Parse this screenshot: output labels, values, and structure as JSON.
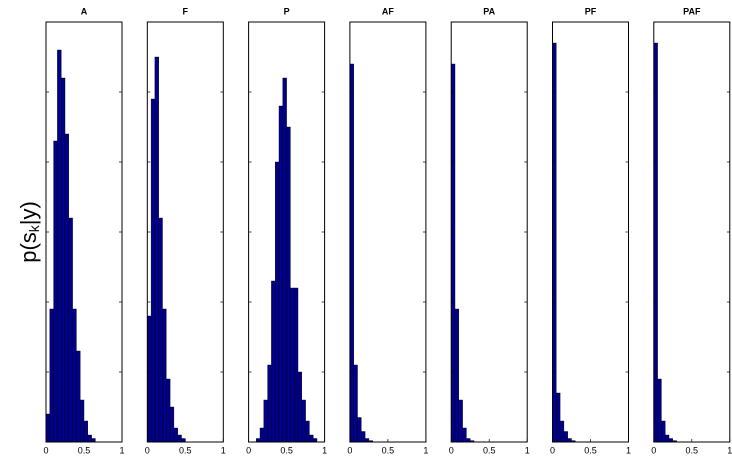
{
  "ylabel_parts": [
    "p(s",
    "k",
    "|y)"
  ],
  "chart_data": [
    {
      "type": "histogram",
      "title": "A",
      "color": "#00008b",
      "bins": [
        0,
        0.05,
        0.1,
        0.15,
        0.2,
        0.25,
        0.3,
        0.35,
        0.4,
        0.45,
        0.5,
        0.55,
        0.6,
        0.65
      ],
      "values": [
        0.4,
        1.9,
        4.3,
        5.6,
        5.2,
        4.4,
        3.2,
        1.9,
        1.3,
        0.6,
        0.3,
        0.1,
        0.05
      ],
      "xlim": [
        0,
        1
      ],
      "xticks": [
        0,
        0.5,
        1
      ],
      "ylim": [
        0,
        6
      ],
      "yticks": [
        1,
        2,
        3,
        4,
        5
      ]
    },
    {
      "type": "histogram",
      "title": "F",
      "color": "#00008b",
      "bins": [
        0,
        0.05,
        0.1,
        0.15,
        0.2,
        0.25,
        0.3,
        0.35,
        0.4,
        0.45,
        0.5
      ],
      "values": [
        1.8,
        4.9,
        5.5,
        3.2,
        1.9,
        0.9,
        0.5,
        0.2,
        0.1,
        0.05
      ],
      "xlim": [
        0,
        1
      ],
      "xticks": [
        0,
        0.5,
        1
      ],
      "ylim": [
        0,
        6
      ],
      "yticks": [
        1,
        2,
        3,
        4,
        5
      ]
    },
    {
      "type": "histogram",
      "title": "P",
      "color": "#00008b",
      "bins": [
        0.1,
        0.15,
        0.2,
        0.25,
        0.3,
        0.35,
        0.4,
        0.45,
        0.5,
        0.55,
        0.6,
        0.65,
        0.7,
        0.75,
        0.8,
        0.85,
        0.9
      ],
      "values": [
        0.05,
        0.2,
        0.6,
        1.1,
        2.3,
        4.0,
        4.8,
        5.2,
        4.5,
        2.2,
        2.2,
        1.0,
        0.6,
        0.3,
        0.1,
        0.05
      ],
      "xlim": [
        0,
        1
      ],
      "xticks": [
        0,
        0.5,
        1
      ],
      "ylim": [
        0,
        6
      ],
      "yticks": [
        1,
        2,
        3,
        4,
        5
      ]
    },
    {
      "type": "histogram",
      "title": "AF",
      "color": "#00008b",
      "bins": [
        0,
        0.05,
        0.1,
        0.15,
        0.2,
        0.25,
        0.3
      ],
      "values": [
        5.4,
        1.1,
        0.35,
        0.15,
        0.05,
        0.02
      ],
      "xlim": [
        0,
        1
      ],
      "xticks": [
        0,
        0.5,
        1
      ],
      "ylim": [
        0,
        6
      ],
      "yticks": [
        1,
        2,
        3,
        4,
        5
      ]
    },
    {
      "type": "histogram",
      "title": "PA",
      "color": "#00008b",
      "bins": [
        0,
        0.05,
        0.1,
        0.15,
        0.2,
        0.25,
        0.3
      ],
      "values": [
        5.4,
        1.9,
        0.6,
        0.2,
        0.05,
        0.02
      ],
      "xlim": [
        0,
        1
      ],
      "xticks": [
        0,
        0.5,
        1
      ],
      "ylim": [
        0,
        6
      ],
      "yticks": [
        1,
        2,
        3,
        4,
        5
      ]
    },
    {
      "type": "histogram",
      "title": "PF",
      "color": "#00008b",
      "bins": [
        0,
        0.05,
        0.1,
        0.15,
        0.2,
        0.25,
        0.3
      ],
      "values": [
        5.7,
        0.7,
        0.3,
        0.15,
        0.05,
        0.02
      ],
      "xlim": [
        0,
        1
      ],
      "xticks": [
        0,
        0.5,
        1
      ],
      "ylim": [
        0,
        6
      ],
      "yticks": [
        1,
        2,
        3,
        4,
        5
      ]
    },
    {
      "type": "histogram",
      "title": "PAF",
      "color": "#00008b",
      "bins": [
        0,
        0.05,
        0.1,
        0.15,
        0.2,
        0.25,
        0.3
      ],
      "values": [
        5.7,
        0.9,
        0.3,
        0.1,
        0.05,
        0.02
      ],
      "xlim": [
        0,
        1
      ],
      "xticks": [
        0,
        0.5,
        1
      ],
      "ylim": [
        0,
        6
      ],
      "yticks": [
        1,
        2,
        3,
        4,
        5
      ]
    }
  ]
}
